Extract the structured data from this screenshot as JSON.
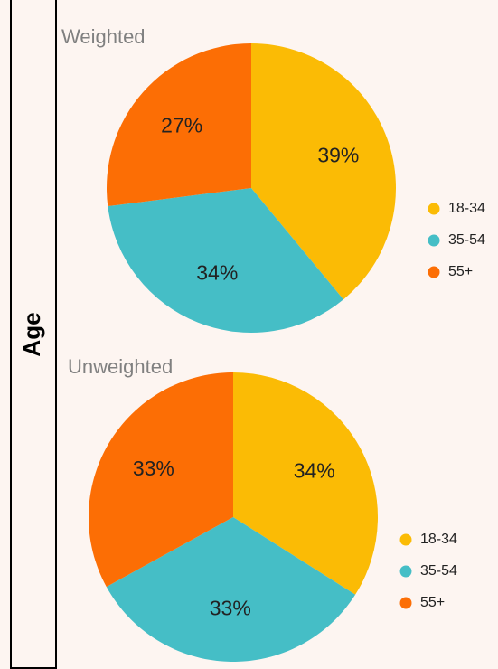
{
  "panel_label": "Age",
  "chart_data": [
    {
      "type": "pie",
      "title": "Weighted",
      "categories": [
        "18-34",
        "35-54",
        "55+"
      ],
      "values": [
        39,
        34,
        27
      ],
      "value_labels": [
        "39%",
        "34%",
        "27%"
      ],
      "colors": [
        "#fbbb05",
        "#45bec6",
        "#fc6e05"
      ]
    },
    {
      "type": "pie",
      "title": "Unweighted",
      "categories": [
        "18-34",
        "35-54",
        "55+"
      ],
      "values": [
        34,
        33,
        33
      ],
      "value_labels": [
        "34%",
        "33%",
        "33%"
      ],
      "colors": [
        "#fbbb05",
        "#45bec6",
        "#fc6e05"
      ]
    }
  ]
}
